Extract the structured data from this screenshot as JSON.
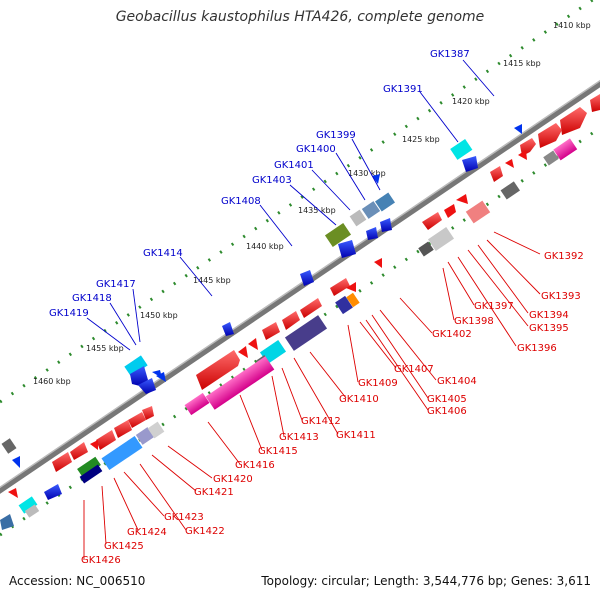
{
  "title": "Geobacillus kaustophilus HTA426, complete genome",
  "accession": "Accession: NC_006510",
  "summary": "Topology: circular; Length: 3,544,776 bp; Genes: 3,611",
  "colors": {
    "upper_label": "#0000cc",
    "lower_label": "#dd0000",
    "backbone": "#777777",
    "tick_dots": "#2e8b2e"
  },
  "kbp_labels": [
    "1410 kbp",
    "1415 kbp",
    "1420 kbp",
    "1425 kbp",
    "1430 kbp",
    "1435 kbp",
    "1440 kbp",
    "1445 kbp",
    "1450 kbp",
    "1455 kbp",
    "1460 kbp"
  ],
  "upper_genes": [
    "GK1387",
    "GK1391",
    "GK1399",
    "GK1400",
    "GK1401",
    "GK1403",
    "GK1408",
    "GK1414",
    "GK1417",
    "GK1418",
    "GK1419"
  ],
  "lower_genes": [
    "GK1392",
    "GK1393",
    "GK1394",
    "GK1395",
    "GK1396",
    "GK1397",
    "GK1398",
    "GK1402",
    "GK1404",
    "GK1405",
    "GK1406",
    "GK1407",
    "GK1409",
    "GK1410",
    "GK1411",
    "GK1412",
    "GK1413",
    "GK1415",
    "GK1416",
    "GK1420",
    "GK1421",
    "GK1422",
    "GK1423",
    "GK1424",
    "GK1425",
    "GK1426"
  ]
}
